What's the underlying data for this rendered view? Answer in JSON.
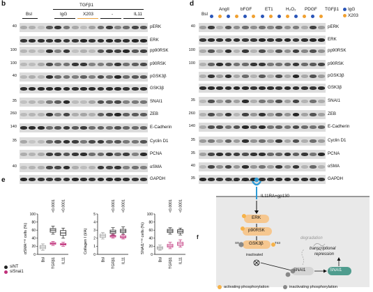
{
  "panel_b": {
    "letter": "b",
    "treatment_header": "TGFβ1",
    "groups": [
      {
        "label": "Bsl",
        "color": "#888888"
      },
      {
        "label": "IgG",
        "color": "#888888"
      },
      {
        "label": "X203",
        "color": "#e6a03c"
      },
      {
        "label": "-",
        "color": "#888888"
      },
      {
        "label": "IL11",
        "color": "#888888"
      }
    ],
    "blots": [
      {
        "label": "pERK",
        "mw": "40"
      },
      {
        "label": "ERK",
        "mw": ""
      },
      {
        "label": "pp90RSK",
        "mw": "100"
      },
      {
        "label": "p90RSK",
        "mw": "100"
      },
      {
        "label": "pGSK3β",
        "mw": "40"
      },
      {
        "label": "GSK3β",
        "mw": ""
      },
      {
        "label": "SNAI1",
        "mw": "35"
      },
      {
        "label": "ZEB",
        "mw": "260"
      },
      {
        "label": "E-Cadherin",
        "mw": "140"
      },
      {
        "label": "Cyclin D1",
        "mw": "35"
      },
      {
        "label": "PCNA",
        "mw": ""
      },
      {
        "label": "αSMA",
        "mw": "40"
      },
      {
        "label": "GAPDH",
        "mw": ""
      }
    ]
  },
  "panel_d": {
    "letter": "d",
    "bsl_label": "Bsl",
    "treatments": [
      "AngII",
      "bFGF",
      "ET1",
      "H₂O₂",
      "PDGF",
      "TGFβ1"
    ],
    "legend": [
      {
        "label": "IgG",
        "color": "#2a55b8"
      },
      {
        "label": "X203",
        "color": "#f0a030"
      }
    ],
    "blots": [
      {
        "label": "pERK",
        "mw": "40"
      },
      {
        "label": "ERK",
        "mw": ""
      },
      {
        "label": "pp90RSK",
        "mw": "100"
      },
      {
        "label": "p90RSK",
        "mw": "100"
      },
      {
        "label": "pGSK3β",
        "mw": ""
      },
      {
        "label": "GSK3β",
        "mw": ""
      },
      {
        "label": "SNAI1",
        "mw": "35"
      },
      {
        "label": "ZEB",
        "mw": "260"
      },
      {
        "label": "E-Cadherin",
        "mw": "140"
      },
      {
        "label": "Cyclin D1",
        "mw": "35"
      },
      {
        "label": "PCNA",
        "mw": "35"
      },
      {
        "label": "αSMA",
        "mw": "40"
      },
      {
        "label": "GAPDH",
        "mw": "35"
      }
    ]
  },
  "panel_e": {
    "letter": "e",
    "legend": [
      {
        "label": "siNT",
        "color": "#222222"
      },
      {
        "label": "siSnai1",
        "color": "#c0307a"
      }
    ],
    "chart_data": [
      {
        "type": "box",
        "ylabel": "αSMA⁺ᵛᵉ cells (%)",
        "ylim": [
          0,
          100
        ],
        "yticks": [
          "0",
          "20",
          "40",
          "60",
          "80",
          "100"
        ],
        "categories": [
          "Bsl",
          "TGFβ1",
          "IL11"
        ],
        "pvalues": [
          "",
          "<0.0001",
          "<0.0001"
        ],
        "series": [
          {
            "name": "siNT",
            "boxes": [
              [
                10,
                14,
                18,
                22,
                26
              ],
              [
                50,
                55,
                60,
                64,
                70
              ],
              [
                40,
                47,
                53,
                59,
                65
              ]
            ]
          },
          {
            "name": "siSnai1",
            "boxes": [
              null,
              [
                22,
                25,
                27,
                29,
                32
              ],
              [
                20,
                23,
                25,
                27,
                30
              ]
            ]
          }
        ]
      },
      {
        "type": "box",
        "ylabel": "Collagen I (I/A)",
        "ylim": [
          0,
          5
        ],
        "yticks": [
          "0",
          "1",
          "2",
          "3",
          "4",
          "5"
        ],
        "categories": [
          "Bsl",
          "TGFβ1",
          "IL11"
        ],
        "pvalues": [
          "",
          "<0.0001",
          "<0.0001"
        ],
        "series": [
          {
            "name": "siNT",
            "boxes": [
              [
                1.9,
                2.1,
                2.3,
                2.5,
                2.7
              ],
              [
                2.4,
                2.6,
                2.8,
                3.0,
                3.3
              ],
              [
                2.5,
                2.7,
                2.9,
                3.1,
                3.4
              ]
            ]
          },
          {
            "name": "siSnai1",
            "boxes": [
              null,
              [
                2.0,
                2.15,
                2.25,
                2.35,
                2.5
              ],
              [
                1.9,
                2.05,
                2.15,
                2.3,
                2.45
              ]
            ]
          }
        ]
      },
      {
        "type": "box",
        "ylabel": "SNAI1⁺ᵛᵉ cells (%)",
        "ylim": [
          0,
          100
        ],
        "yticks": [
          "0",
          "20",
          "40",
          "60",
          "80",
          "100"
        ],
        "categories": [
          "Bsl",
          "TGFβ1",
          "IL11"
        ],
        "pvalues": [
          "",
          "<0.0001",
          "<0.0001"
        ],
        "series": [
          {
            "name": "siNT",
            "boxes": [
              [
                10,
                13,
                16,
                19,
                23
              ],
              [
                50,
                54,
                58,
                62,
                66
              ],
              [
                48,
                53,
                57,
                61,
                65
              ]
            ]
          },
          {
            "name": "siSnai1",
            "boxes": [
              null,
              [
                14,
                18,
                21,
                25,
                30
              ],
              [
                18,
                22,
                26,
                30,
                36
              ]
            ]
          }
        ]
      }
    ]
  },
  "panel_f": {
    "letter": "f",
    "ligand": "IL11",
    "receptor": "IL11RA+gp130",
    "erk": "ERK",
    "rsk": "p90RSK",
    "gsk": "GSK3β",
    "snai1": "SNAI1",
    "snai1_nuclear": "SNAI1",
    "site_s9": "S9",
    "site_t43": "T43",
    "inactivated": "inactivated",
    "degradation": "degradation",
    "transcriptional": "transcriptional",
    "repression": "repression",
    "p": "P",
    "legend_activating": "activating phosphorylation",
    "legend_inactivating": "inactivating phosphorylation"
  }
}
